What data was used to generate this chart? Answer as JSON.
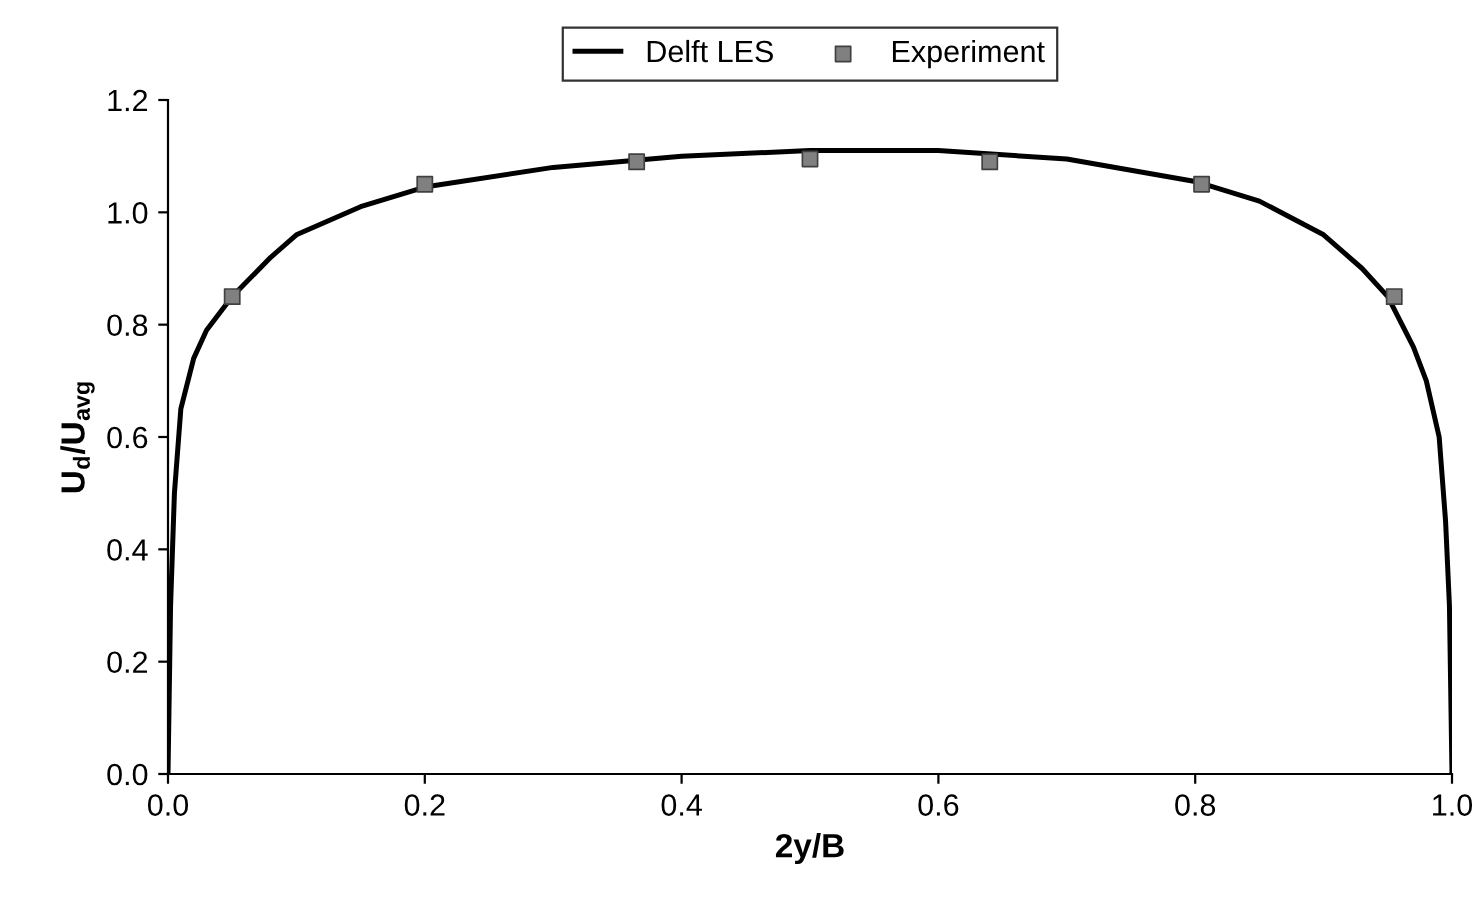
{
  "chart_data": {
    "type": "line",
    "xlabel": "2y/B",
    "ylabel": "U$_{d}$/U$_{avg}$",
    "xlim": [
      0,
      1
    ],
    "ylim": [
      0,
      1.2
    ],
    "xticks": [
      {
        "value": 0,
        "label": "0.0"
      },
      0.2,
      0.4,
      0.6,
      0.8,
      {
        "value": 1,
        "label": "1.0"
      }
    ],
    "yticks": [
      {
        "value": 0,
        "label": "0.0"
      },
      0.2,
      0.4,
      0.6,
      0.8,
      {
        "value": 1,
        "label": "1.0"
      },
      1.2
    ],
    "grid": false,
    "legend": "top",
    "series": [
      {
        "name": "Delft LES",
        "color": "#000000",
        "marker": "none",
        "line_style": "solid",
        "x": [
          0,
          0.002,
          0.005,
          0.01,
          0.02,
          0.03,
          0.05,
          0.08,
          0.1,
          0.15,
          0.2,
          0.3,
          0.4,
          0.5,
          0.6,
          0.7,
          0.8,
          0.85,
          0.9,
          0.93,
          0.95,
          0.97,
          0.98,
          0.99,
          0.995,
          0.998,
          1.0
        ],
        "values": [
          0,
          0.3,
          0.5,
          0.65,
          0.74,
          0.79,
          0.85,
          0.92,
          0.96,
          1.01,
          1.045,
          1.08,
          1.1,
          1.11,
          1.11,
          1.095,
          1.055,
          1.02,
          0.96,
          0.9,
          0.85,
          0.76,
          0.7,
          0.6,
          0.45,
          0.3,
          0
        ]
      },
      {
        "name": "Experiment",
        "type": "scatter",
        "color": "#808080",
        "marker": "square",
        "x": [
          0.05,
          0.2,
          0.365,
          0.5,
          0.64,
          0.805,
          0.955
        ],
        "values": [
          0.85,
          1.05,
          1.09,
          1.095,
          1.09,
          1.05,
          0.85
        ]
      }
    ]
  }
}
